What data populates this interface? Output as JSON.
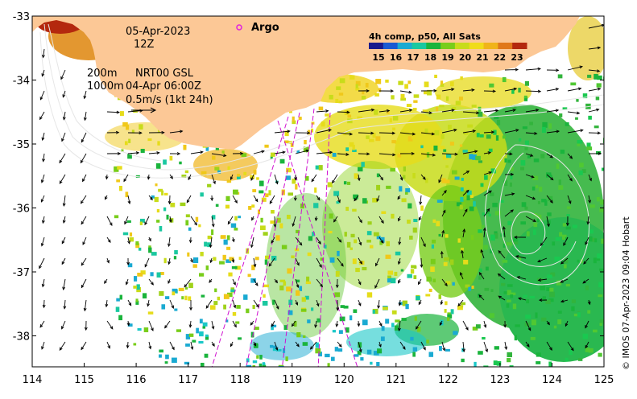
{
  "date": "05-Apr-2023",
  "hour": "12Z",
  "argo_label": "Argo",
  "composite_label": "4h comp, p50, All Sats",
  "legend_ticks": [
    "15",
    "16",
    "17",
    "18",
    "19",
    "20",
    "21",
    "22",
    "23"
  ],
  "isobaths": "200m\n1000m",
  "altimetry_source": "NRT00 GSL",
  "altimetry_time": "04-Apr 06:00Z",
  "arrow_scale": "0.5m/s (1kt 24h)",
  "credit": "© IMOS 07-Apr-2023 09:04 Hobart",
  "x_ticks": [
    "114",
    "115",
    "116",
    "117",
    "118",
    "119",
    "120",
    "121",
    "122",
    "123",
    "124",
    "125"
  ],
  "y_ticks": [
    "-33",
    "-34",
    "-35",
    "-36",
    "-37",
    "-38"
  ],
  "colors": {
    "land": "#fcc896",
    "argo": "#e020e0",
    "track": "#d010d0",
    "contour": "#e6e6e6"
  },
  "colormap": [
    "#1a1a8c",
    "#1a5ad2",
    "#1aaad2",
    "#1ac8a0",
    "#1ab43c",
    "#78cd1a",
    "#c8dc1a",
    "#f0dc1a",
    "#f0b41a",
    "#e0781a",
    "#b4280e"
  ]
}
